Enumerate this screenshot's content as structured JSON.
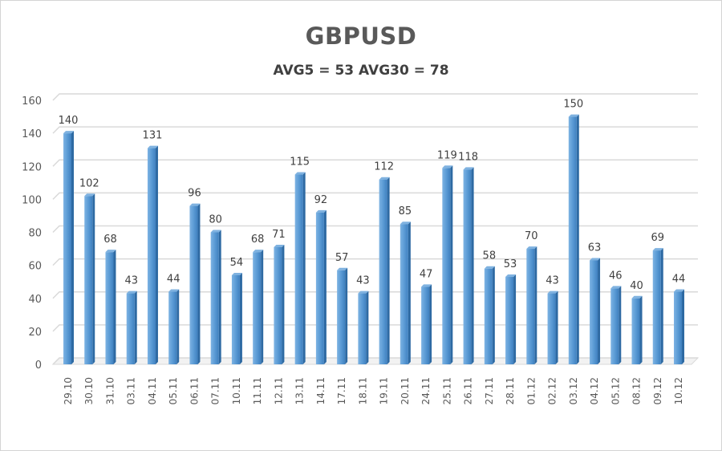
{
  "chart": {
    "title": "GBPUSD",
    "subtitle": "AVG5 = 53 AVG30 = 78",
    "bar_color": "#5b9bd5",
    "bar_side_color": "#2e6aa3",
    "grid_color": "#d9d9d9"
  },
  "chart_data": {
    "type": "bar",
    "title": "GBPUSD",
    "subtitle": "AVG5 = 53 AVG30 = 78",
    "xlabel": "",
    "ylabel": "",
    "ylim": [
      0,
      160
    ],
    "yticks": [
      0,
      20,
      40,
      60,
      80,
      100,
      120,
      140,
      160
    ],
    "grid": true,
    "legend": "none",
    "categories": [
      "29.10",
      "30.10",
      "31.10",
      "03.11",
      "04.11",
      "05.11",
      "06.11",
      "07.11",
      "10.11",
      "11.11",
      "12.11",
      "13.11",
      "14.11",
      "17.11",
      "18.11",
      "19.11",
      "20.11",
      "24.11",
      "25.11",
      "26.11",
      "27.11",
      "28.11",
      "01.12",
      "02.12",
      "03.12",
      "04.12",
      "05.12",
      "08.12",
      "09.12",
      "10.12"
    ],
    "values": [
      140,
      102,
      68,
      43,
      131,
      44,
      96,
      80,
      54,
      68,
      71,
      115,
      92,
      57,
      43,
      112,
      85,
      47,
      119,
      118,
      58,
      53,
      70,
      43,
      150,
      63,
      46,
      40,
      69,
      44
    ]
  }
}
